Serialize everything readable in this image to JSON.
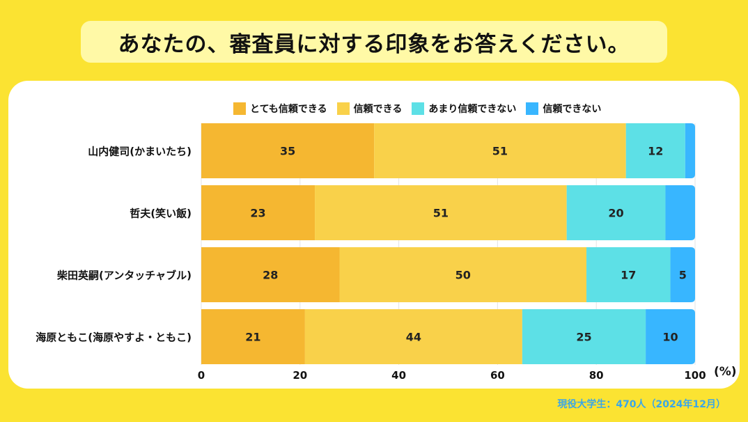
{
  "title": "あなたの、審査員に対する印象をお答えください。",
  "footnote": "現役大学生：470人（2024年12月）",
  "colors": {
    "background": "#FBE332",
    "title_box": "#FFF9A6",
    "panel": "#FFFFFF",
    "footnote": "#3AA6E8"
  },
  "chart_data": {
    "type": "bar",
    "orientation": "horizontal",
    "stacked": true,
    "categories": [
      "山内健司(かまいたち)",
      "哲夫(笑い飯)",
      "柴田英嗣(アンタッチャブル)",
      "海原ともこ(海原やすよ・ともこ)"
    ],
    "series": [
      {
        "name": "とても信頼できる",
        "color": "#F5B731",
        "values": [
          35,
          23,
          28,
          21
        ]
      },
      {
        "name": "信頼できる",
        "color": "#F9D14A",
        "values": [
          51,
          51,
          50,
          44
        ]
      },
      {
        "name": "あまり信頼できない",
        "color": "#5DE0E6",
        "values": [
          12,
          20,
          17,
          25
        ]
      },
      {
        "name": "信頼できない",
        "color": "#38B6FF",
        "values": [
          2,
          6,
          5,
          10
        ]
      }
    ],
    "data_labels": [
      [
        "35",
        "51",
        "12",
        ""
      ],
      [
        "23",
        "51",
        "20",
        ""
      ],
      [
        "28",
        "50",
        "17",
        "5"
      ],
      [
        "21",
        "44",
        "25",
        "10"
      ]
    ],
    "x_ticks": [
      "0",
      "20",
      "40",
      "60",
      "80",
      "100"
    ],
    "xlim": [
      0,
      100
    ],
    "unit_label": "(%)",
    "grid": true,
    "legend_position": "top"
  }
}
